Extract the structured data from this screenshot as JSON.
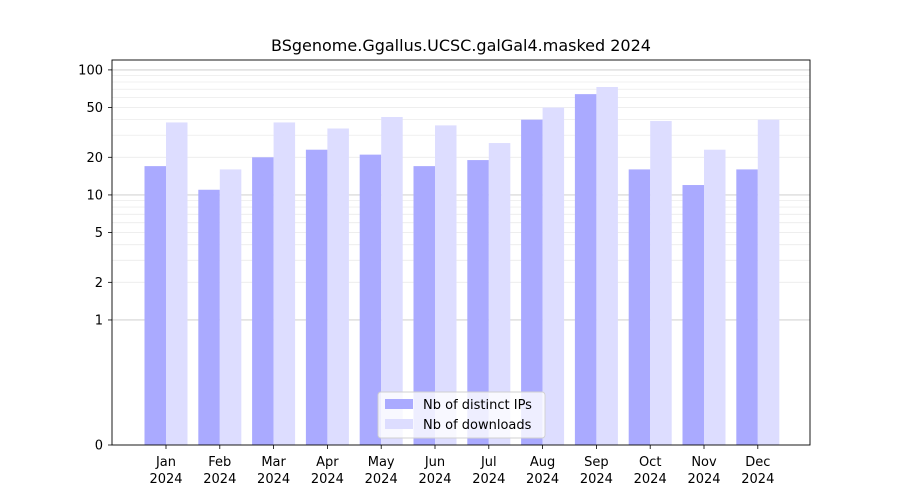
{
  "chart_data": {
    "type": "bar",
    "title": "BSgenome.Ggallus.UCSC.galGal4.masked 2024",
    "xlabel": "",
    "ylabel": "",
    "categories": [
      [
        "Jan",
        "2024"
      ],
      [
        "Feb",
        "2024"
      ],
      [
        "Mar",
        "2024"
      ],
      [
        "Apr",
        "2024"
      ],
      [
        "May",
        "2024"
      ],
      [
        "Jun",
        "2024"
      ],
      [
        "Jul",
        "2024"
      ],
      [
        "Aug",
        "2024"
      ],
      [
        "Sep",
        "2024"
      ],
      [
        "Oct",
        "2024"
      ],
      [
        "Nov",
        "2024"
      ],
      [
        "Dec",
        "2024"
      ]
    ],
    "series": [
      {
        "name": "Nb of distinct IPs",
        "color": "#aaaaff",
        "values": [
          17,
          11,
          20,
          23,
          21,
          17,
          19,
          40,
          64,
          16,
          12,
          16
        ]
      },
      {
        "name": "Nb of downloads",
        "color": "#ddddff",
        "values": [
          38,
          16,
          38,
          34,
          42,
          36,
          26,
          50,
          73,
          39,
          23,
          40
        ]
      }
    ],
    "y_scale": "symlog",
    "ylim": [
      0,
      120
    ],
    "y_ticks": [
      0,
      1,
      2,
      5,
      10,
      20,
      50,
      100
    ],
    "grid": true,
    "legend_position": "lower center"
  }
}
